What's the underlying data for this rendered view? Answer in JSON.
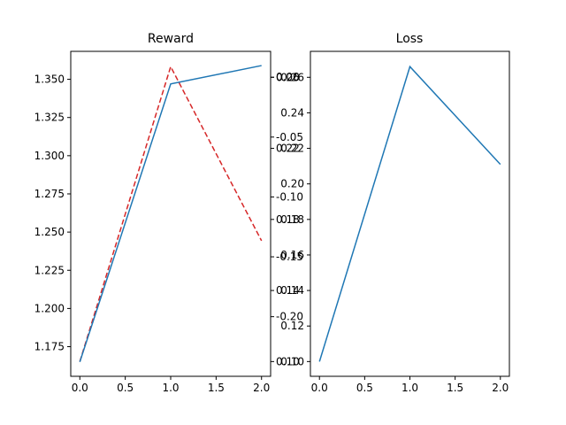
{
  "chart_data": [
    {
      "type": "line",
      "title": "Reward",
      "xlabel": "",
      "ylabel": "",
      "x": [
        0,
        1,
        2
      ],
      "xlim": [
        -0.1,
        2.1
      ],
      "x_ticks": [
        "0.0",
        "0.5",
        "1.0",
        "1.5",
        "2.0"
      ],
      "ylim": [
        1.1556,
        1.3683
      ],
      "y_ticks": [
        "1.175",
        "1.200",
        "1.225",
        "1.250",
        "1.275",
        "1.300",
        "1.325",
        "1.350"
      ],
      "grid": false,
      "series": [
        {
          "values": [
            1.165,
            1.347,
            1.359
          ],
          "color": "#1f77b4",
          "style": "solid"
        }
      ],
      "secondary_axes": [
        {
          "axis": "right",
          "ylim": [
            0.0917,
            0.2746
          ],
          "y_ticks": [
            "0.10",
            "0.14",
            "0.18",
            "0.22",
            "0.26"
          ],
          "series": [
            {
              "values": [
                0.1,
                0.266,
                0.168
              ],
              "color": "#d62728",
              "style": "dashed"
            }
          ]
        },
        {
          "axis": "right",
          "note_overlapping_labels": true,
          "ylim": [
            -0.2498,
            0.0216
          ],
          "y_ticks": [
            "-0.20",
            "-0.15",
            "-0.10",
            "-0.05",
            "0.00"
          ],
          "series": []
        }
      ]
    },
    {
      "type": "line",
      "title": "Loss",
      "xlabel": "",
      "ylabel": "",
      "x": [
        0,
        1,
        2
      ],
      "xlim": [
        -0.1,
        2.1
      ],
      "x_ticks": [
        "0.0",
        "0.5",
        "1.0",
        "1.5",
        "2.0"
      ],
      "ylim": [
        0.0917,
        0.2746
      ],
      "y_ticks": [
        "0.10",
        "0.12",
        "0.14",
        "0.16",
        "0.18",
        "0.20",
        "0.22",
        "0.24",
        "0.26"
      ],
      "grid": false,
      "series": [
        {
          "values": [
            0.1,
            0.266,
            0.211
          ],
          "color": "#1f77b4",
          "style": "solid"
        }
      ]
    }
  ]
}
